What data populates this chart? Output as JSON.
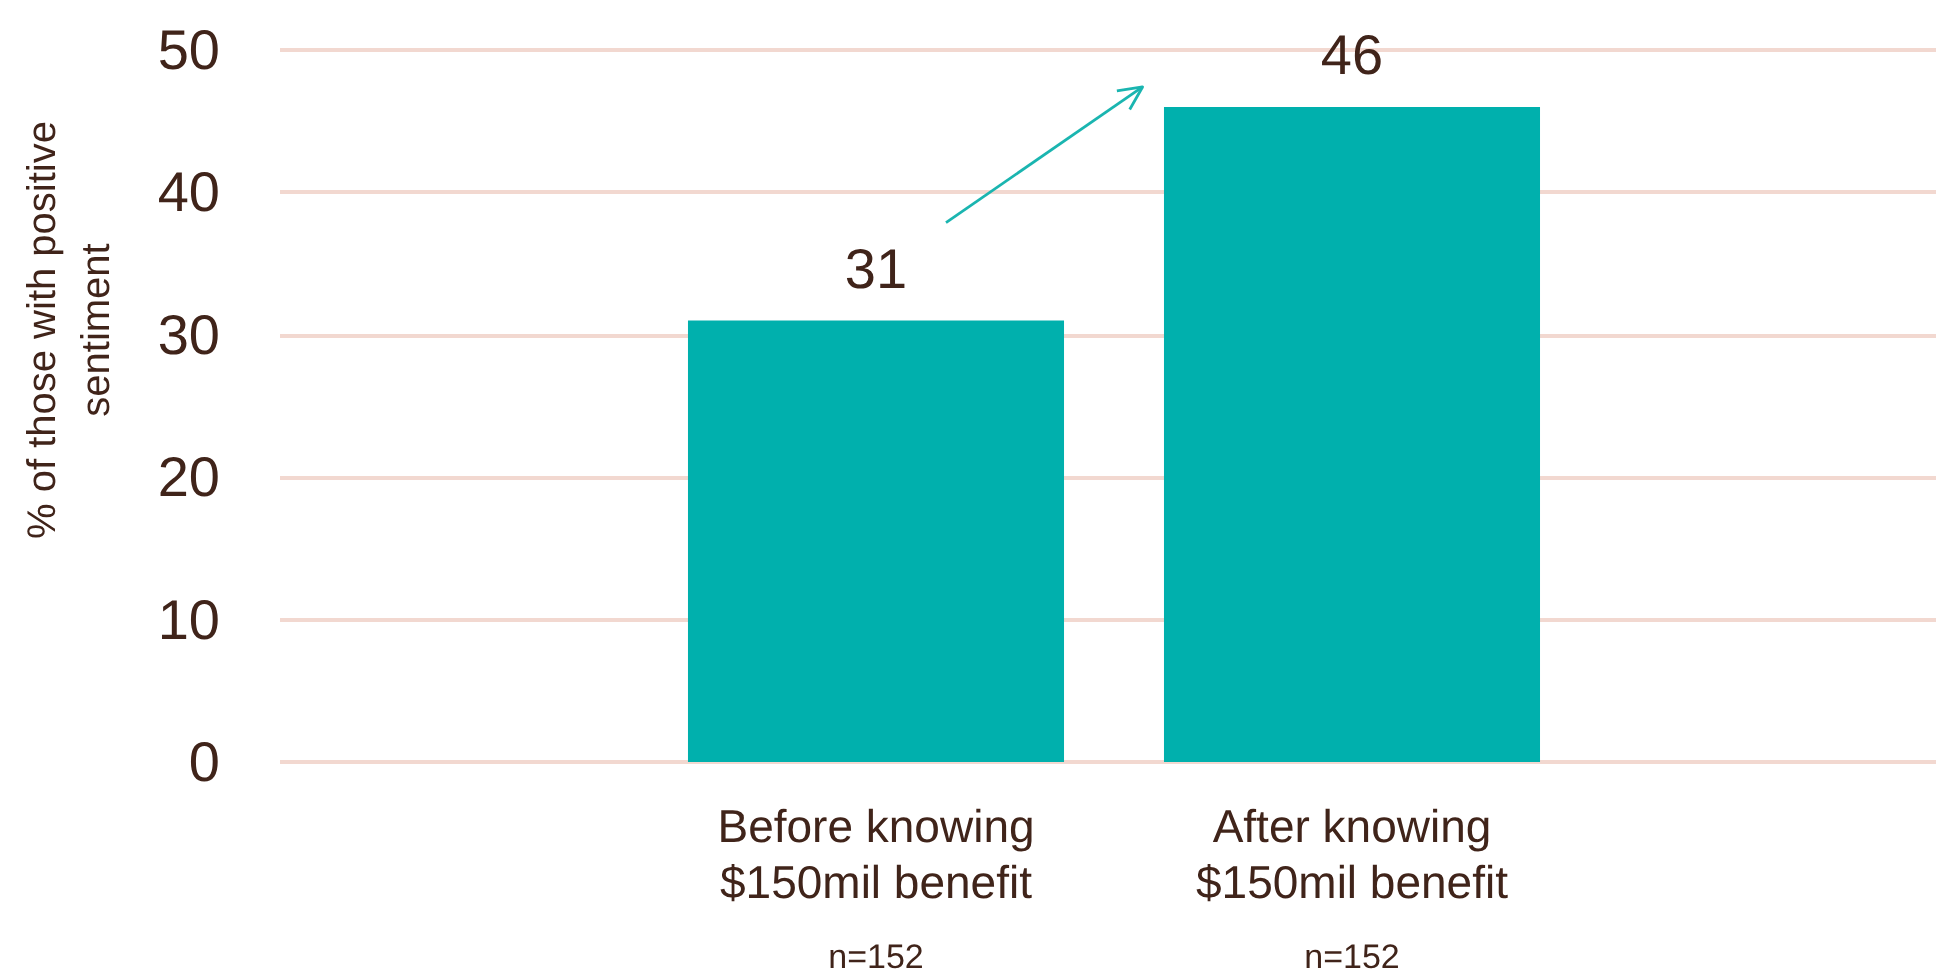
{
  "chart_data": {
    "type": "bar",
    "ylabel": "% of those with positive sentiment",
    "categories": [
      "Before knowing $150mil benefit",
      "After knowing $150mil benefit"
    ],
    "values": [
      31,
      46
    ],
    "color": "#00b0ad",
    "ylim": [
      0,
      50
    ],
    "yticks": [
      0,
      10,
      20,
      30,
      40,
      50
    ],
    "grid": "y",
    "data_labels": true,
    "annotations": [
      "n=152",
      "n=152"
    ]
  }
}
